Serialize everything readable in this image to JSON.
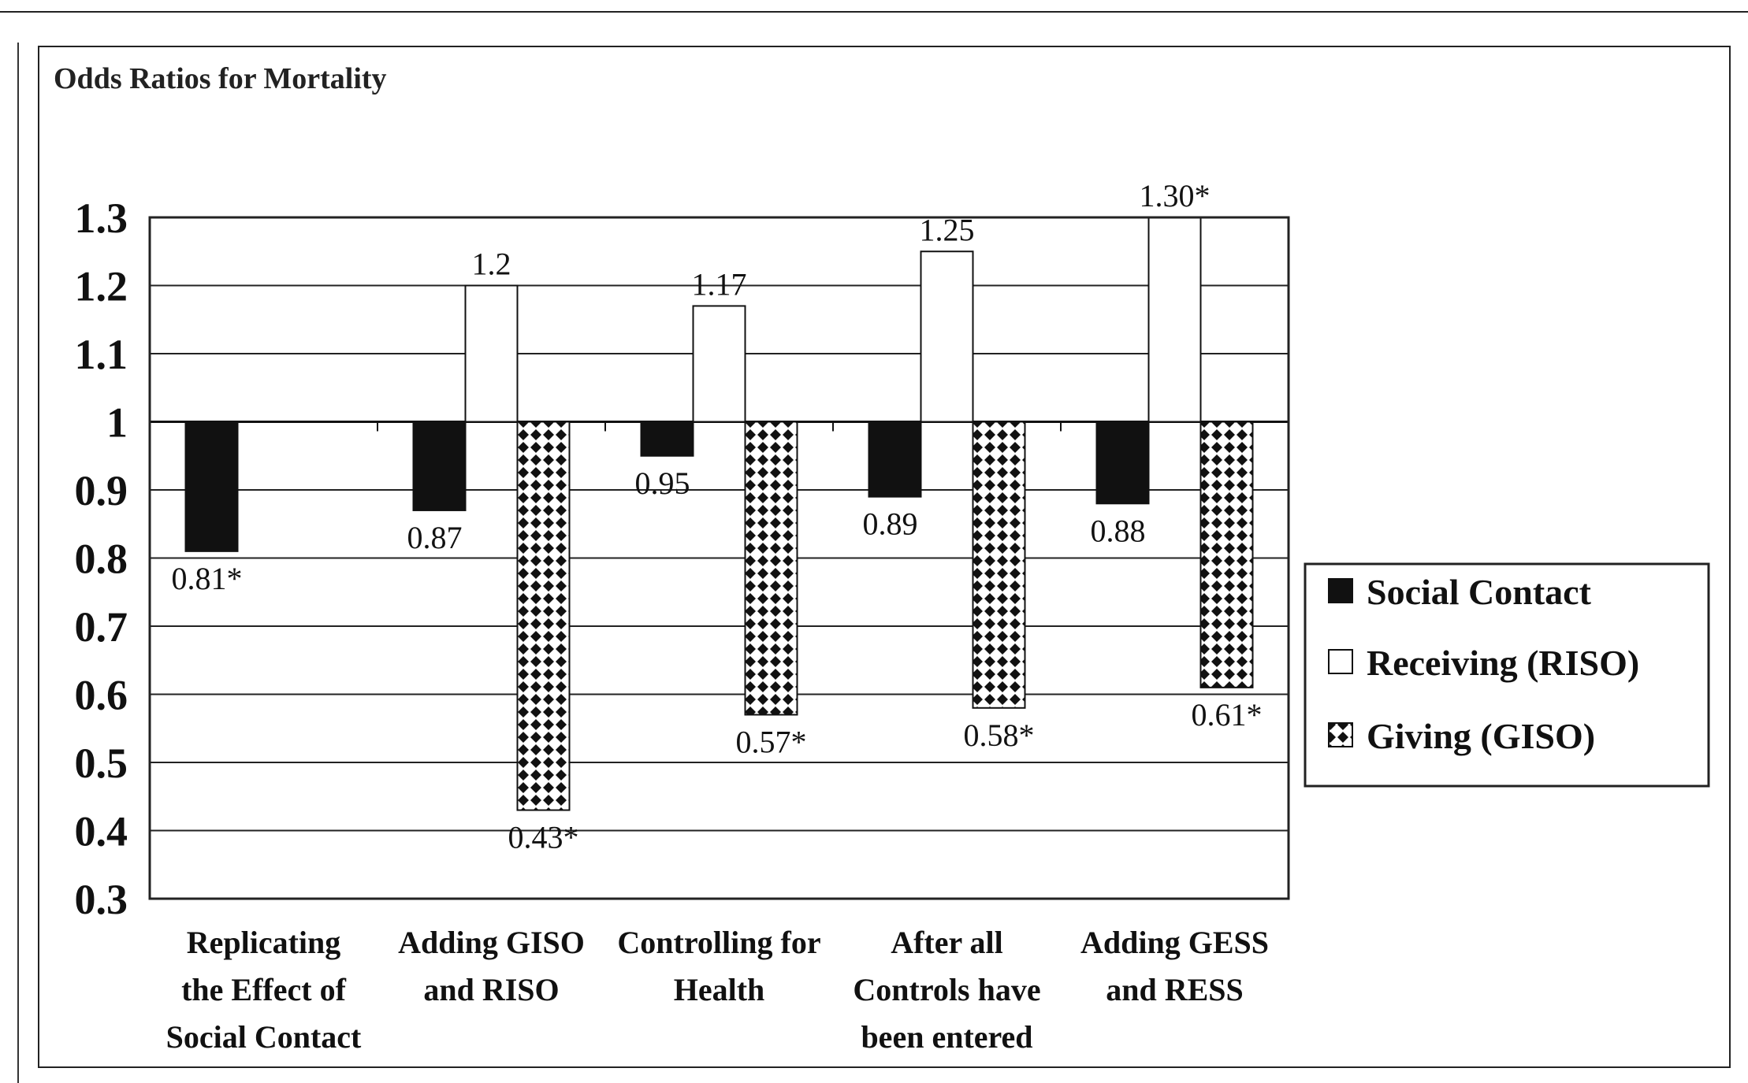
{
  "chart_data": {
    "type": "bar",
    "title": "Odds Ratios for Mortality",
    "baseline": 1,
    "ylim": [
      0.3,
      1.3
    ],
    "yticks": [
      "1.3",
      "1.2",
      "1.1",
      "1",
      "0.9",
      "0.8",
      "0.7",
      "0.6",
      "0.5",
      "0.4",
      "0.3"
    ],
    "categories": [
      [
        "Replicating",
        "the Effect of",
        "Social Contact"
      ],
      [
        "Adding GISO",
        "and RISO"
      ],
      [
        "Controlling for",
        "Health"
      ],
      [
        "After all",
        "Controls have",
        "been entered"
      ],
      [
        "Adding GESS",
        "and RESS"
      ]
    ],
    "series": [
      {
        "name": "Social Contact",
        "fill": "#111111",
        "values": [
          0.81,
          0.87,
          0.95,
          0.89,
          0.88
        ],
        "labels": [
          "0.81*",
          "0.87",
          "0.95",
          "0.89",
          "0.88"
        ]
      },
      {
        "name": "Receiving (RISO)",
        "fill": "#ffffff",
        "values": [
          null,
          1.2,
          1.17,
          1.25,
          1.3
        ],
        "labels": [
          "",
          "1.2",
          "1.17",
          "1.25",
          "1.30*"
        ]
      },
      {
        "name": "Giving (GISO)",
        "fill": "pattern",
        "values": [
          null,
          0.43,
          0.57,
          0.58,
          0.61
        ],
        "labels": [
          "",
          "0.43*",
          "0.57*",
          "0.58*",
          "0.61*"
        ]
      }
    ],
    "grid": true,
    "legend_position": "right"
  }
}
